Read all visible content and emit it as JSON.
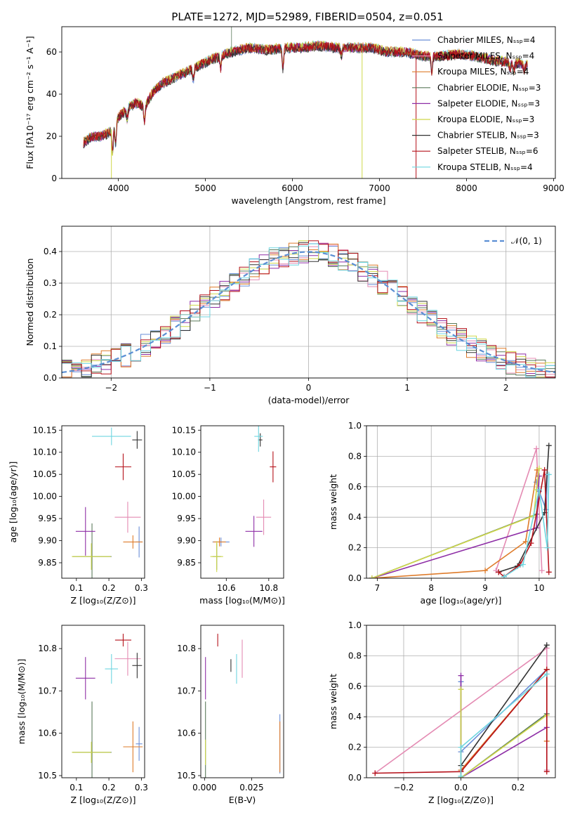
{
  "title": "PLATE=1272, MJD=52989, FIBERID=0504, z=0.051",
  "colors": [
    "#6a8fd8",
    "#e48bb3",
    "#de7b2a",
    "#5b7a5b",
    "#8e2ea6",
    "#cfd84a",
    "#333333",
    "#b5121b",
    "#6fd6e0"
  ],
  "chart_data": [
    {
      "type": "line",
      "xlabel": "wavelength [Angstrom, rest frame]",
      "ylabel": "Flux [fλ10⁻¹⁷ erg cm⁻² s⁻¹ A⁻¹]",
      "xlim": [
        3350,
        9020
      ],
      "ylim": [
        0,
        72
      ],
      "xticks": [
        "4000",
        "5000",
        "6000",
        "7000",
        "8000",
        "9000"
      ],
      "yticks": [
        "0",
        "20",
        "40",
        "60"
      ],
      "legend_position": "upper right",
      "legend": [
        "Chabrier MILES, Nₛₛₚ=4",
        "Salpeter MILES, Nₛₛₚ=4",
        "Kroupa MILES, Nₛₛₚ=4",
        "Chabrier ELODIE, Nₛₛₚ=3",
        "Salpeter ELODIE, Nₛₛₚ=3",
        "Kroupa ELODIE, Nₛₛₚ=3",
        "Chabrier STELIB, Nₛₛₚ=3",
        "Salpeter STELIB, Nₛₛₚ=6",
        "Kroupa STELIB, Nₛₛₚ=4"
      ],
      "continuum": [
        [
          3600,
          17
        ],
        [
          3700,
          20
        ],
        [
          3800,
          20
        ],
        [
          3900,
          22
        ],
        [
          4000,
          29
        ],
        [
          4100,
          33
        ],
        [
          4200,
          36
        ],
        [
          4300,
          34
        ],
        [
          4400,
          41
        ],
        [
          4500,
          45
        ],
        [
          4700,
          49
        ],
        [
          4900,
          53
        ],
        [
          5100,
          57
        ],
        [
          5300,
          60
        ],
        [
          5500,
          62
        ],
        [
          5700,
          61
        ],
        [
          5900,
          62
        ],
        [
          6100,
          62
        ],
        [
          6300,
          63
        ],
        [
          6500,
          62
        ],
        [
          6700,
          62
        ],
        [
          6900,
          62
        ],
        [
          7100,
          60
        ],
        [
          7300,
          60
        ],
        [
          7500,
          58
        ],
        [
          7700,
          58
        ],
        [
          7900,
          59
        ],
        [
          8100,
          58
        ],
        [
          8300,
          56
        ],
        [
          8500,
          55
        ],
        [
          8700,
          54
        ]
      ],
      "dropouts": [
        {
          "x": 3920,
          "y": 0
        },
        {
          "x": 6800,
          "y": 0
        },
        {
          "x": 7420,
          "y": 0
        }
      ],
      "spikes": [
        {
          "x": 5300,
          "y": 72
        }
      ]
    },
    {
      "type": "line",
      "xlabel": "(data-model)/error",
      "ylabel": "Normed distribution",
      "xlim": [
        -2.5,
        2.5
      ],
      "ylim": [
        0,
        0.48
      ],
      "xticks": [
        -2,
        -1,
        0,
        1,
        2
      ],
      "xticklabels": [
        "−2",
        "−1",
        "0",
        "1",
        "2"
      ],
      "yticks": [
        0,
        0.1,
        0.2,
        0.3,
        0.4
      ],
      "yticklabels": [
        "0.0",
        "0.1",
        "0.2",
        "0.3",
        "0.4"
      ],
      "grid": true,
      "legend_position": "upper right",
      "legend": [
        "𝒩(0, 1)"
      ],
      "normal_pdf": {
        "mean": 0,
        "sigma": 1
      }
    },
    {
      "type": "scatter",
      "xlabel": "Z [log₁₀(Z/Z⊙)]",
      "ylabel": "age  [log₁₀(age/yr)]",
      "xlim": [
        0.055,
        0.31
      ],
      "ylim": [
        9.815,
        10.16
      ],
      "xticks": [
        0.1,
        0.2,
        0.3
      ],
      "xticklabels": [
        "0.1",
        "0.2",
        "0.3"
      ],
      "yticks": [
        9.85,
        9.9,
        9.95,
        10.0,
        10.05,
        10.1,
        10.15
      ],
      "yticklabels": [
        "9.85",
        "9.90",
        "9.95",
        "10.00",
        "10.05",
        "10.10",
        "10.15"
      ],
      "points": [
        {
          "c": 0,
          "x": 0.293,
          "y": 9.897,
          "ex": 0.01,
          "ey": 0.035
        },
        {
          "c": 1,
          "x": 0.258,
          "y": 9.953,
          "ex": 0.04,
          "ey": 0.035
        },
        {
          "c": 2,
          "x": 0.274,
          "y": 9.897,
          "ex": 0.03,
          "ey": 0.015
        },
        {
          "c": 3,
          "x": 0.148,
          "y": 9.864,
          "ex": 0.06,
          "ey": 0.075
        },
        {
          "c": 4,
          "x": 0.128,
          "y": 9.921,
          "ex": 0.03,
          "ey": 0.055
        },
        {
          "c": 5,
          "x": 0.146,
          "y": 9.864,
          "ex": 0.06,
          "ey": 0.03
        },
        {
          "c": 6,
          "x": 0.287,
          "y": 10.128,
          "ex": 0.015,
          "ey": 0.02
        },
        {
          "c": 7,
          "x": 0.244,
          "y": 10.067,
          "ex": 0.025,
          "ey": 0.03
        },
        {
          "c": 8,
          "x": 0.208,
          "y": 10.136,
          "ex": 0.06,
          "ey": 0.02
        }
      ]
    },
    {
      "type": "scatter",
      "xlabel": "mass [log₁₀(M/M⊙)]",
      "ylabel": "",
      "xlim": [
        10.48,
        10.87
      ],
      "ylim": [
        9.815,
        10.16
      ],
      "xticks": [
        10.6,
        10.8
      ],
      "xticklabels": [
        "10.6",
        "10.8"
      ],
      "yticks": [
        9.85,
        9.9,
        9.95,
        10.0,
        10.05,
        10.1,
        10.15
      ],
      "yticklabels": [
        "9.85",
        "9.90",
        "9.95",
        "10.00",
        "10.05",
        "10.10",
        "10.15"
      ],
      "points": [
        {
          "c": 0,
          "x": 10.575,
          "y": 9.897,
          "ex": 0.04,
          "ey": 0.01
        },
        {
          "c": 1,
          "x": 10.776,
          "y": 9.953,
          "ex": 0.035,
          "ey": 0.04
        },
        {
          "c": 2,
          "x": 10.568,
          "y": 9.897,
          "ex": 0.03,
          "ey": 0.01
        },
        {
          "c": 3,
          "x": 10.555,
          "y": 9.864,
          "ex": 0.02,
          "ey": 0.03
        },
        {
          "c": 4,
          "x": 10.73,
          "y": 9.921,
          "ex": 0.04,
          "ey": 0.035
        },
        {
          "c": 5,
          "x": 10.555,
          "y": 9.864,
          "ex": 0.03,
          "ey": 0.035
        },
        {
          "c": 6,
          "x": 10.76,
          "y": 10.128,
          "ex": 0.01,
          "ey": 0.015
        },
        {
          "c": 7,
          "x": 10.82,
          "y": 10.067,
          "ex": 0.015,
          "ey": 0.035
        },
        {
          "c": 8,
          "x": 10.752,
          "y": 10.136,
          "ex": 0.02,
          "ey": 0.035
        }
      ]
    },
    {
      "type": "line",
      "xlabel": "age  [log₁₀(age/yr)]",
      "ylabel": "mass weight",
      "xlim": [
        6.8,
        10.3
      ],
      "ylim": [
        0,
        1.0
      ],
      "xticks": [
        7,
        8,
        9,
        10
      ],
      "xticklabels": [
        "7",
        "8",
        "9",
        "10"
      ],
      "yticks": [
        0,
        0.2,
        0.4,
        0.6,
        0.8,
        1.0
      ],
      "yticklabels": [
        "0.0",
        "0.2",
        "0.4",
        "0.6",
        "0.8",
        "1.0"
      ],
      "grid": true,
      "series": [
        {
          "c": 0,
          "x": [
            9.95,
            10.0,
            10.13,
            10.15
          ],
          "y": [
            0.63,
            0.57,
            0.45,
            0.68
          ]
        },
        {
          "c": 1,
          "x": [
            9.2,
            9.95,
            10.05
          ],
          "y": [
            0.05,
            0.85,
            0.05
          ]
        },
        {
          "c": 2,
          "x": [
            6.9,
            9.0,
            9.75,
            9.96
          ],
          "y": [
            0.0,
            0.05,
            0.24,
            0.71
          ]
        },
        {
          "c": 3,
          "x": [
            6.9,
            9.95,
            10.0
          ],
          "y": [
            0.0,
            0.42,
            0.58
          ]
        },
        {
          "c": 4,
          "x": [
            6.9,
            9.95,
            10.0
          ],
          "y": [
            0.0,
            0.33,
            0.67
          ]
        },
        {
          "c": 5,
          "x": [
            6.9,
            9.9,
            9.95,
            10.0
          ],
          "y": [
            0.0,
            0.41,
            0.58,
            0.72
          ]
        },
        {
          "c": 6,
          "x": [
            9.25,
            9.6,
            10.1,
            10.18
          ],
          "y": [
            0.04,
            0.08,
            0.43,
            0.87
          ]
        },
        {
          "c": 7,
          "x": [
            9.25,
            9.35,
            9.65,
            9.85,
            10.1,
            10.18
          ],
          "y": [
            0.04,
            0.01,
            0.09,
            0.23,
            0.71,
            0.04
          ]
        },
        {
          "c": 8,
          "x": [
            9.35,
            9.7,
            10.0,
            10.15,
            10.18
          ],
          "y": [
            0.01,
            0.09,
            0.58,
            0.2,
            0.68
          ]
        }
      ]
    },
    {
      "type": "scatter",
      "xlabel": "Z [log₁₀(Z/Z⊙)]",
      "ylabel": "mass [log₁₀(M/M⊙)]",
      "xlim": [
        0.055,
        0.31
      ],
      "ylim": [
        10.495,
        10.855
      ],
      "xticks": [
        0.1,
        0.2,
        0.3
      ],
      "xticklabels": [
        "0.1",
        "0.2",
        "0.3"
      ],
      "yticks": [
        10.5,
        10.6,
        10.7,
        10.8
      ],
      "yticklabels": [
        "10.5",
        "10.6",
        "10.7",
        "10.8"
      ],
      "points": [
        {
          "c": 0,
          "x": 0.293,
          "y": 10.575,
          "ex": 0.01,
          "ey": 0.04
        },
        {
          "c": 1,
          "x": 0.258,
          "y": 10.776,
          "ex": 0.04,
          "ey": 0.04
        },
        {
          "c": 2,
          "x": 0.274,
          "y": 10.568,
          "ex": 0.03,
          "ey": 0.06
        },
        {
          "c": 3,
          "x": 0.148,
          "y": 10.555,
          "ex": 0.06,
          "ey": 0.12
        },
        {
          "c": 4,
          "x": 0.128,
          "y": 10.73,
          "ex": 0.03,
          "ey": 0.05
        },
        {
          "c": 5,
          "x": 0.146,
          "y": 10.555,
          "ex": 0.06,
          "ey": 0.025
        },
        {
          "c": 6,
          "x": 0.287,
          "y": 10.76,
          "ex": 0.015,
          "ey": 0.03
        },
        {
          "c": 7,
          "x": 0.244,
          "y": 10.82,
          "ex": 0.025,
          "ey": 0.015
        },
        {
          "c": 8,
          "x": 0.208,
          "y": 10.752,
          "ex": 0.02,
          "ey": 0.035
        }
      ]
    },
    {
      "type": "scatter",
      "xlabel": "E(B-V)",
      "ylabel": "",
      "xlim": [
        -0.002,
        0.042
      ],
      "ylim": [
        10.495,
        10.855
      ],
      "xticks": [
        0,
        0.025
      ],
      "xticklabels": [
        "0.000",
        "0.025"
      ],
      "yticks": [
        10.5,
        10.6,
        10.7,
        10.8
      ],
      "yticklabels": [
        "10.5",
        "10.6",
        "10.7",
        "10.8"
      ],
      "points": [
        {
          "c": 0,
          "x": 0.04,
          "y": 10.575,
          "ex": 0,
          "ey": 0.07
        },
        {
          "c": 1,
          "x": 0.02,
          "y": 10.776,
          "ex": 0,
          "ey": 0.045
        },
        {
          "c": 2,
          "x": 0.04,
          "y": 10.568,
          "ex": 0,
          "ey": 0.06
        },
        {
          "c": 3,
          "x": 0.0005,
          "y": 10.555,
          "ex": 0,
          "ey": 0.12
        },
        {
          "c": 4,
          "x": 0.0005,
          "y": 10.73,
          "ex": 0,
          "ey": 0.05
        },
        {
          "c": 5,
          "x": 0.0005,
          "y": 10.555,
          "ex": 0,
          "ey": 0.03
        },
        {
          "c": 6,
          "x": 0.014,
          "y": 10.76,
          "ex": 0,
          "ey": 0.015
        },
        {
          "c": 7,
          "x": 0.007,
          "y": 10.82,
          "ex": 0,
          "ey": 0.015
        },
        {
          "c": 8,
          "x": 0.017,
          "y": 10.752,
          "ex": 0,
          "ey": 0.035
        }
      ]
    },
    {
      "type": "line",
      "xlabel": "Z [log₁₀(Z/Z⊙)]",
      "ylabel": "mass weight",
      "xlim": [
        -0.33,
        0.33
      ],
      "ylim": [
        0,
        1.0
      ],
      "xticks": [
        -0.2,
        0,
        0.2
      ],
      "xticklabels": [
        "−0.2",
        "0.0",
        "0.2"
      ],
      "yticks": [
        0,
        0.2,
        0.4,
        0.6,
        0.8,
        1.0
      ],
      "yticklabels": [
        "0.0",
        "0.2",
        "0.4",
        "0.6",
        "0.8",
        "1.0"
      ],
      "grid": true,
      "series": [
        {
          "c": 0,
          "x": [
            0.0,
            0.0,
            0.3
          ],
          "y": [
            0.63,
            0.17,
            0.71
          ]
        },
        {
          "c": 1,
          "x": [
            -0.3,
            0.3,
            0.3
          ],
          "y": [
            0.03,
            0.85,
            0.05
          ]
        },
        {
          "c": 2,
          "x": [
            0.0,
            0.3,
            0.3
          ],
          "y": [
            0.05,
            0.71,
            0.24
          ]
        },
        {
          "c": 3,
          "x": [
            0.0,
            0.0,
            0.3
          ],
          "y": [
            0.58,
            0.0,
            0.42
          ]
        },
        {
          "c": 4,
          "x": [
            0.0,
            0.0,
            0.3
          ],
          "y": [
            0.67,
            0.0,
            0.33
          ]
        },
        {
          "c": 5,
          "x": [
            0.0,
            0.0,
            0.3
          ],
          "y": [
            0.58,
            0.0,
            0.41
          ]
        },
        {
          "c": 6,
          "x": [
            0.0,
            0.0,
            0.3
          ],
          "y": [
            0.04,
            0.08,
            0.87
          ]
        },
        {
          "c": 7,
          "x": [
            -0.3,
            0.0,
            0.3,
            0.3
          ],
          "y": [
            0.03,
            0.04,
            0.71,
            0.04
          ]
        },
        {
          "c": 8,
          "x": [
            0.0,
            0.0,
            0.3
          ],
          "y": [
            0.01,
            0.2,
            0.68
          ]
        }
      ]
    }
  ]
}
